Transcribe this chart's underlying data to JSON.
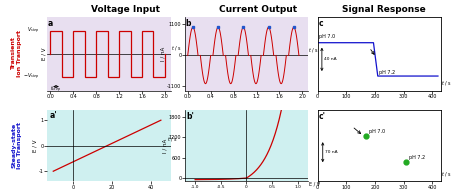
{
  "col_titles": [
    "Voltage Input",
    "Current Output",
    "Signal Response"
  ],
  "top_bg": "#e8dff0",
  "bottom_bg": "#cff0f0",
  "square_wave_color": "#cc0000",
  "arc_color": "#cc0000",
  "dot_color": "#2255cc",
  "steady_line_color": "#cc0000",
  "signal_c_color": "#1111cc",
  "signal_cp_color": "#22aa22",
  "red_label_color": "#cc0000",
  "blue_label_color": "#1111cc"
}
